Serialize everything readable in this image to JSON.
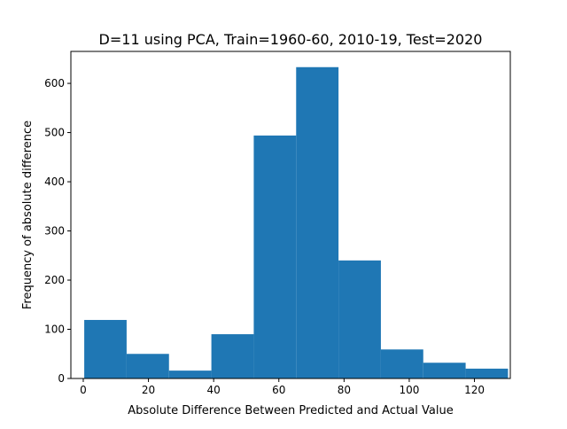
{
  "chart_data": {
    "type": "bar",
    "title": "D=11 using PCA, Train=1960-60, 2010-19, Test=2020",
    "xlabel": "Absolute Difference Between Predicted and Actual Value",
    "ylabel": "Frequency of absolute difference",
    "xlim": [
      -3.8,
      131
    ],
    "ylim": [
      0,
      665
    ],
    "xticks": [
      0,
      20,
      40,
      60,
      80,
      100,
      120
    ],
    "yticks": [
      0,
      100,
      200,
      300,
      400,
      500,
      600
    ],
    "bin_edges": [
      0.3,
      13.3,
      26.3,
      39.3,
      52.3,
      65.3,
      78.3,
      91.3,
      104.3,
      117.3,
      130.3
    ],
    "values": [
      119,
      50,
      16,
      90,
      494,
      633,
      240,
      59,
      32,
      20
    ],
    "bar_color": "#1f77b4"
  }
}
